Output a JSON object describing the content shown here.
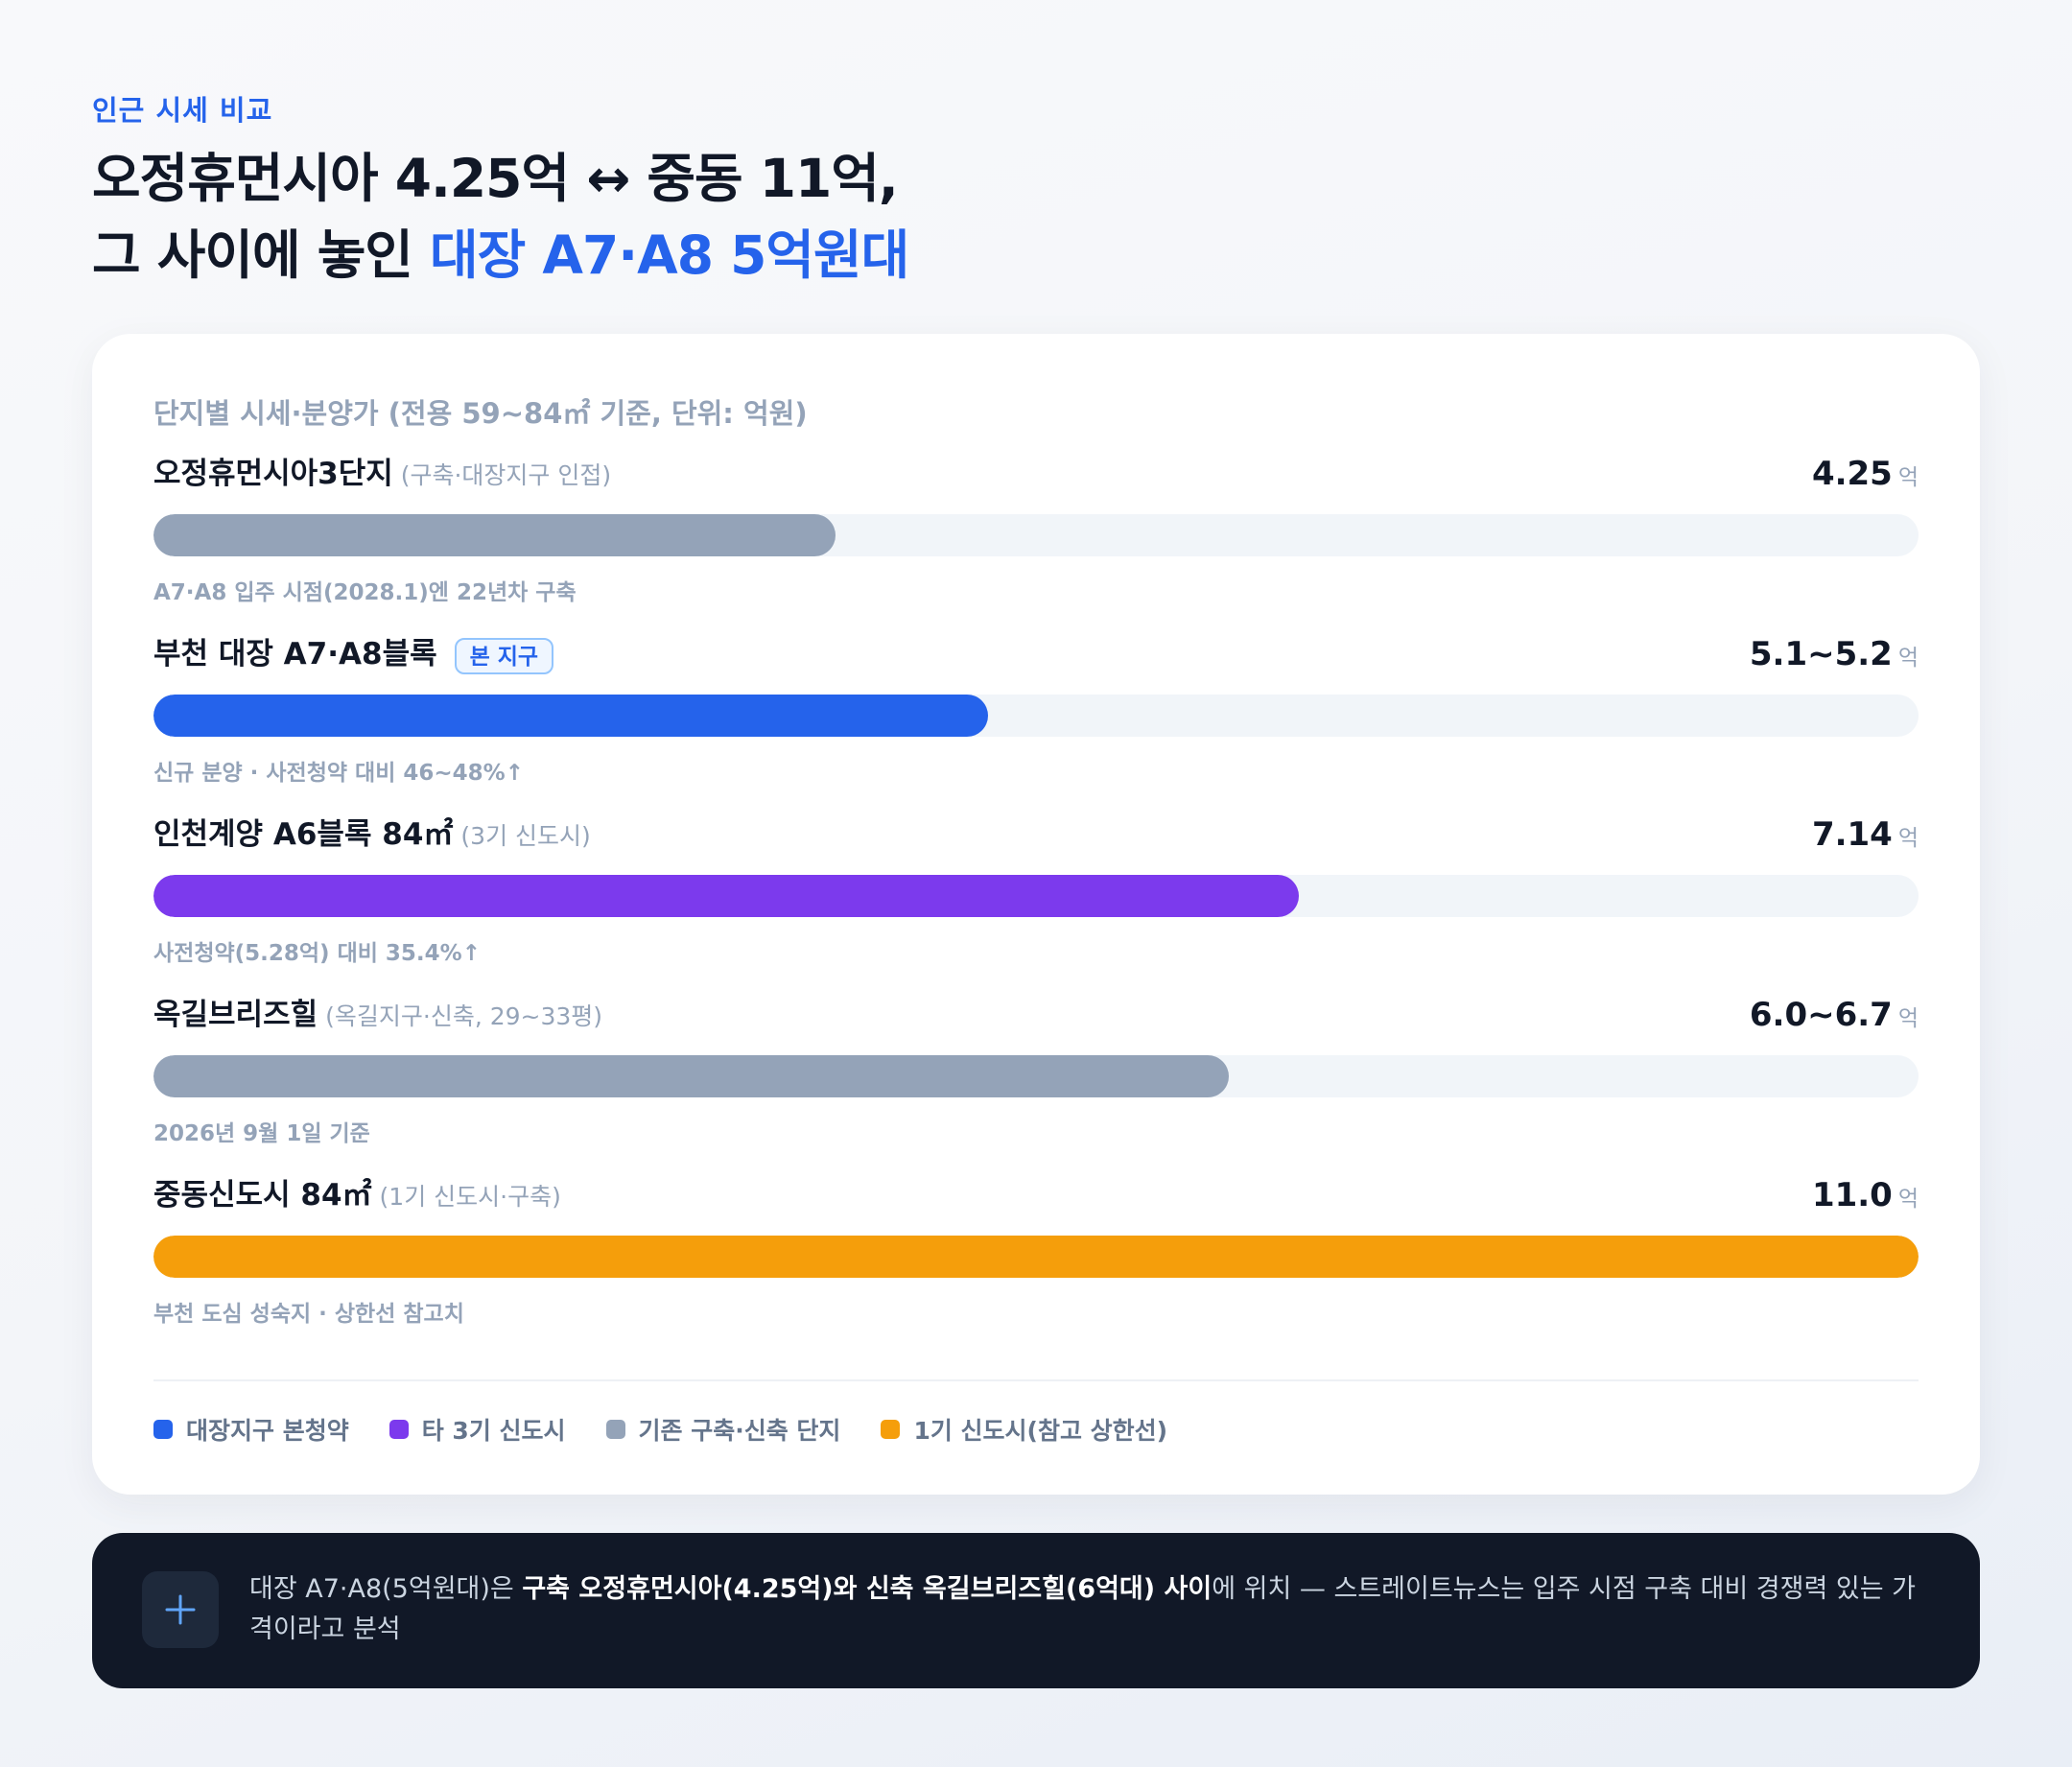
{
  "header": {
    "eyebrow": "인근 시세 비교",
    "headline_line1": "오정휴먼시아 4.25억 ↔ 중동 11억,",
    "headline_line2_prefix": "그 사이에 놓인 ",
    "headline_line2_accent": "대장 A7·A8 5억원대"
  },
  "chart_data": {
    "type": "bar",
    "orientation": "horizontal",
    "title": "단지별 시세·분양가 (전용 59~84㎡ 기준, 단위: 억원)",
    "xlim": [
      0,
      11.0
    ],
    "unit": "억",
    "rows": [
      {
        "title": "오정휴먼시아3단지",
        "note": "(구축·대장지구 인접)",
        "badge": "",
        "value_label": "4.25",
        "value": 4.25,
        "subtitle": "A7·A8 입주 시점(2028.1)엔 22년차 구축",
        "color": "#94a3b8"
      },
      {
        "title": "부천 대장 A7·A8블록",
        "note": "",
        "badge": "본 지구",
        "value_label": "5.1~5.2",
        "value": 5.2,
        "subtitle": "신규 분양 · 사전청약 대비 46~48%↑",
        "color": "#2563eb"
      },
      {
        "title": "인천계양 A6블록 84㎡",
        "note": "(3기 신도시)",
        "badge": "",
        "value_label": "7.14",
        "value": 7.14,
        "subtitle": "사전청약(5.28억) 대비 35.4%↑",
        "color": "#7c3aed"
      },
      {
        "title": "옥길브리즈힐",
        "note": "(옥길지구·신축, 29~33평)",
        "badge": "",
        "value_label": "6.0~6.7",
        "value": 6.7,
        "subtitle": "2026년 9월 1일 기준",
        "color": "#94a3b8"
      },
      {
        "title": "중동신도시 84㎡",
        "note": "(1기 신도시·구축)",
        "badge": "",
        "value_label": "11.0",
        "value": 11.0,
        "subtitle": "부천 도심 성숙지 · 상한선 참고치",
        "color": "#f59e0b"
      }
    ],
    "legend": [
      {
        "label": "대장지구 본청약",
        "color": "#2563eb"
      },
      {
        "label": "타 3기 신도시",
        "color": "#7c3aed"
      },
      {
        "label": "기존 구축·신축 단지",
        "color": "#94a3b8"
      },
      {
        "label": "1기 신도시(참고 상한선)",
        "color": "#f59e0b"
      }
    ]
  },
  "callout": {
    "icon": "plus-icon",
    "part1": "대장 A7·A8(5억원대)은 ",
    "part2_bold": "구축 오정휴먼시아(4.25억)와 신축 옥길브리즈힐(6억대) 사이",
    "part3": "에 위치 — 스트레이트뉴스는 입주 시점 구축 대비 경쟁력 있는 가격이라고 분석"
  }
}
